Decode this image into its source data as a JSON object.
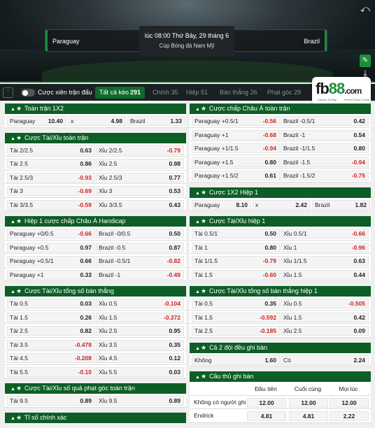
{
  "header": {
    "home": "Paraguay",
    "away": "Brazil",
    "time": "lúc 08:00 Thứ Bảy, 29 tháng 6",
    "competition": "Cúp Bóng đá Nam Mỹ",
    "icons": [
      "back-icon",
      "pin-icon",
      "download-icon"
    ]
  },
  "tabbar": {
    "combo_label": "Cược xiên trận đấu",
    "tabs": [
      {
        "label": "Tất cả kèo",
        "count": "291",
        "active": true
      },
      {
        "label": "Chính",
        "count": "35"
      },
      {
        "label": "Hiệp",
        "count": "51"
      },
      {
        "label": "Bàn thắng",
        "count": "26"
      },
      {
        "label": "Phạt góc",
        "count": "29"
      }
    ]
  },
  "logo": {
    "brand": "fb",
    "brand2": "88",
    "tld": ".com",
    "tag1": "Games To Play",
    "tag2": "Perfect Place To Bet"
  },
  "markets_left": [
    {
      "title": "Toàn trận 1X2",
      "type": "three",
      "rows": [
        [
          [
            "Paraguay",
            "10.40"
          ],
          [
            "x",
            "4.98"
          ],
          [
            "Brazil",
            "1.33"
          ]
        ]
      ]
    },
    {
      "title": "Cược Tài/Xỉu toàn trận",
      "type": "two",
      "rows": [
        [
          [
            "Tài 2/2.5",
            "0.63"
          ],
          [
            "Xỉu 2/2.5",
            "-0.79"
          ]
        ],
        [
          [
            "Tài 2.5",
            "0.86"
          ],
          [
            "Xỉu 2.5",
            "0.98"
          ]
        ],
        [
          [
            "Tài 2.5/3",
            "-0.93"
          ],
          [
            "Xỉu 2.5/3",
            "0.77"
          ]
        ],
        [
          [
            "Tài 3",
            "-0.69"
          ],
          [
            "Xỉu 3",
            "0.53"
          ]
        ],
        [
          [
            "Tài 3/3.5",
            "-0.59"
          ],
          [
            "Xỉu 3/3.5",
            "0.43"
          ]
        ]
      ]
    },
    {
      "title": "Hiệp 1 cược chấp Châu Á Handicap",
      "type": "two",
      "rows": [
        [
          [
            "Paraguay +0/0.5",
            "-0.66"
          ],
          [
            "Brazil -0/0.5",
            "0.50"
          ]
        ],
        [
          [
            "Paraguay +0.5",
            "0.97"
          ],
          [
            "Brazil -0.5",
            "0.87"
          ]
        ],
        [
          [
            "Paraguay +0.5/1",
            "0.66"
          ],
          [
            "Brazil -0.5/1",
            "-0.82"
          ]
        ],
        [
          [
            "Paraguay +1",
            "0.33"
          ],
          [
            "Brazil -1",
            "-0.49"
          ]
        ]
      ]
    },
    {
      "title": "Cược Tài/Xỉu tổng số bàn thắng",
      "type": "two",
      "rows": [
        [
          [
            "Tài 0.5",
            "0.03"
          ],
          [
            "Xỉu 0.5",
            "-0.104"
          ]
        ],
        [
          [
            "Tài 1.5",
            "0.26"
          ],
          [
            "Xỉu 1.5",
            "-0.372"
          ]
        ],
        [
          [
            "Tài 2.5",
            "0.82"
          ],
          [
            "Xỉu 2.5",
            "0.95"
          ]
        ],
        [
          [
            "Tài 3.5",
            "-0.478"
          ],
          [
            "Xỉu 3.5",
            "0.35"
          ]
        ],
        [
          [
            "Tài 4.5",
            "-0.208"
          ],
          [
            "Xỉu 4.5",
            "0.12"
          ]
        ],
        [
          [
            "Tài 5.5",
            "-0.10"
          ],
          [
            "Xỉu 5.5",
            "0.03"
          ]
        ]
      ]
    },
    {
      "title": "Cược Tài/Xỉu số quả phạt góc toàn trận",
      "type": "two",
      "rows": [
        [
          [
            "Tài 9.5",
            "0.89"
          ],
          [
            "Xỉu 9.5",
            "0.89"
          ]
        ]
      ]
    },
    {
      "title": "Tỉ số chính xác",
      "type": "two",
      "rows": []
    }
  ],
  "markets_right": [
    {
      "title": "Cược chấp Châu Á toàn trận",
      "type": "two",
      "rows": [
        [
          [
            "Paraguay +0.5/1",
            "-0.56"
          ],
          [
            "Brazil -0.5/1",
            "0.42"
          ]
        ],
        [
          [
            "Paraguay +1",
            "-0.68"
          ],
          [
            "Brazil -1",
            "0.54"
          ]
        ],
        [
          [
            "Paraguay +1/1.5",
            "-0.94"
          ],
          [
            "Brazil -1/1.5",
            "0.80"
          ]
        ],
        [
          [
            "Paraguay +1.5",
            "0.80"
          ],
          [
            "Brazil -1.5",
            "-0.94"
          ]
        ],
        [
          [
            "Paraguay +1.5/2",
            "0.61"
          ],
          [
            "Brazil -1.5/2",
            "-0.75"
          ]
        ]
      ]
    },
    {
      "title": "Cược 1X2 Hiệp 1",
      "type": "three",
      "rows": [
        [
          [
            "Paraguay",
            "8.10"
          ],
          [
            "x",
            "2.42"
          ],
          [
            "Brazil",
            "1.82"
          ]
        ]
      ]
    },
    {
      "title": "Cược Tài/Xỉu hiệp 1",
      "type": "two",
      "rows": [
        [
          [
            "Tài 0.5/1",
            "0.50"
          ],
          [
            "Xỉu 0.5/1",
            "-0.66"
          ]
        ],
        [
          [
            "Tài 1",
            "0.80"
          ],
          [
            "Xỉu 1",
            "-0.96"
          ]
        ],
        [
          [
            "Tài 1/1.5",
            "-0.79"
          ],
          [
            "Xỉu 1/1.5",
            "0.63"
          ]
        ],
        [
          [
            "Tài 1.5",
            "-0.60"
          ],
          [
            "Xỉu 1.5",
            "0.44"
          ]
        ]
      ]
    },
    {
      "title": "Cược Tài/Xỉu tổng số bàn thắng hiệp 1",
      "type": "two",
      "rows": [
        [
          [
            "Tài 0.5",
            "0.35"
          ],
          [
            "Xỉu 0.5",
            "-0.505"
          ]
        ],
        [
          [
            "Tài 1.5",
            "-0.592"
          ],
          [
            "Xỉu 1.5",
            "0.42"
          ]
        ],
        [
          [
            "Tài 2.5",
            "-0.185"
          ],
          [
            "Xỉu 2.5",
            "0.09"
          ]
        ]
      ]
    },
    {
      "title": "Cả 2 đội đều ghi bàn",
      "type": "two",
      "rows": [
        [
          [
            "Không",
            "1.60"
          ],
          [
            "Có",
            "2.24"
          ]
        ]
      ]
    },
    {
      "title": "Cầu thủ ghi bàn",
      "type": "scorer",
      "headers": [
        "Đầu tiên",
        "Cuối cùng",
        "Mọi lúc"
      ],
      "rows": [
        [
          "Không có người ghi ...",
          "12.00",
          "12.00",
          "12.00"
        ],
        [
          "Endrick",
          "4.81",
          "4.81",
          "2.22"
        ]
      ]
    }
  ]
}
